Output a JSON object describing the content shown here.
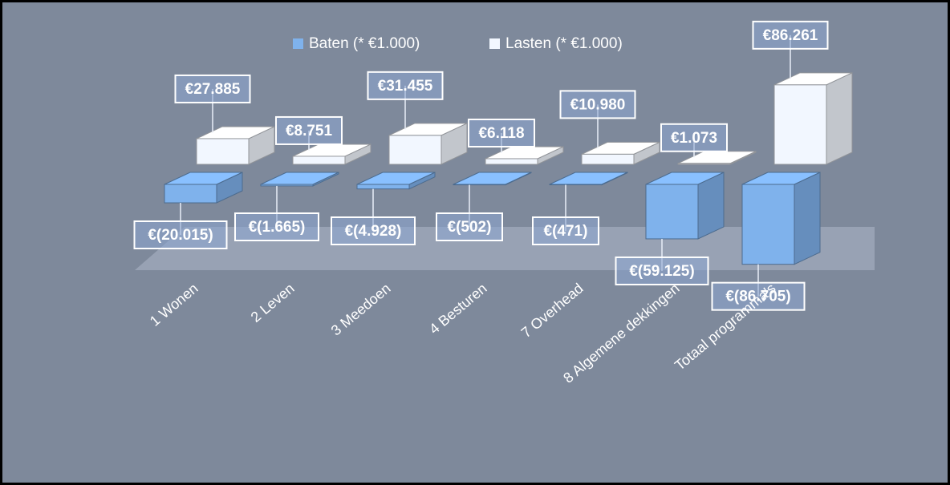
{
  "chart_data": {
    "type": "bar3d",
    "categories": [
      "1 Wonen",
      "2 Leven",
      "3 Meedoen",
      "4 Besturen",
      "7 Overhead",
      "8 Algemene dekkingen",
      "Totaal programma's"
    ],
    "series": [
      {
        "name": "Baten (* €1.000)",
        "color": "#7fb2ec",
        "values": [
          -20015,
          -1665,
          -4928,
          -502,
          -471,
          -59125,
          -86705
        ],
        "value_labels": [
          "€(20.015)",
          "€(1.665)",
          "€(4.928)",
          "€(502)",
          "€(471)",
          "€(59.125)",
          "€(86.705)"
        ]
      },
      {
        "name": "Lasten (* €1.000)",
        "color": "#f2f7ff",
        "values": [
          27885,
          8751,
          31455,
          6118,
          10980,
          1073,
          86261
        ],
        "value_labels": [
          "€27.885",
          "€8.751",
          "€31.455",
          "€6.118",
          "€10.980",
          "€1.073",
          "€86.261"
        ]
      }
    ],
    "legend": "top"
  }
}
